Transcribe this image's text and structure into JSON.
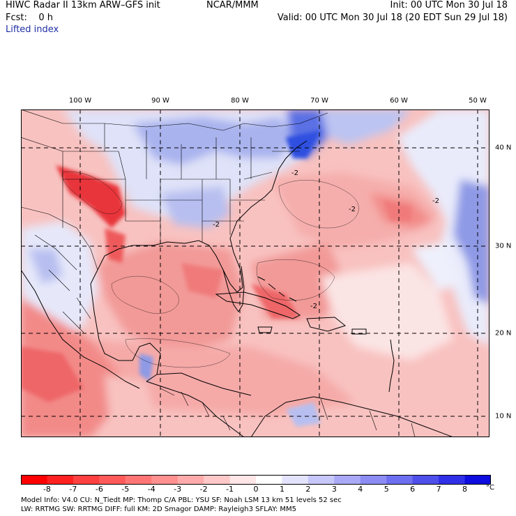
{
  "header": {
    "line1_left": "HIWC Radar II 13km ARW–GFS init",
    "line1_mid": "NCAR/MMM",
    "line1_right": "Init: 00 UTC Mon 30 Jul 18",
    "line2_left": "Fcst:    0 h",
    "line2_right": "Valid: 00 UTC Mon 30 Jul 18 (20 EDT Sun 29 Jul 18)",
    "variable": "Lifted index"
  },
  "map": {
    "lon_labels": [
      "100 W",
      "90 W",
      "80 W",
      "70 W",
      "60 W",
      "50 W"
    ],
    "lat_labels": [
      "40 N",
      "30 N",
      "20 N",
      "10 N"
    ],
    "contour_labels": [
      "-2",
      "-2",
      "-2",
      "-2",
      "-2"
    ],
    "colors": {
      "strong_unstable": "#e8363b",
      "unstable": "#f28a88",
      "weak_unstable": "#f8c2c0",
      "neutral": "#ffffff",
      "weak_stable": "#d8dcf5",
      "stable": "#8e9ae6",
      "strong_stable": "#3a55e0"
    }
  },
  "colorbar": {
    "labels": [
      "-8",
      "-7",
      "-6",
      "-5",
      "-4",
      "-3",
      "-2",
      "-1",
      "0",
      "1",
      "2",
      "3",
      "4",
      "5",
      "6",
      "7",
      "8"
    ],
    "unit": "°C",
    "colors": [
      "#ff0000",
      "#ff2020",
      "#ff4040",
      "#ff5a5a",
      "#ff7575",
      "#ff9090",
      "#ffabab",
      "#ffc8c8",
      "#ffe5e5",
      "#ffffff",
      "#e3e3fd",
      "#c7c7fa",
      "#a9a9f7",
      "#8c8cf4",
      "#6e6ef0",
      "#4f4fec",
      "#3030e8",
      "#0d0ddf"
    ]
  },
  "footer": {
    "line1": "Model Info: V4.0      CU: N_Tiedt  MP: Thomp C/A    PBL: YSU       SF: Noah LSM     13 km    51 levels   52 sec",
    "line2": "                      LW: RRTMG      SW: RRTMG   DIFF: full    KM: 2D Smagor DAMP: Rayleigh3   SFLAY: MM5"
  }
}
